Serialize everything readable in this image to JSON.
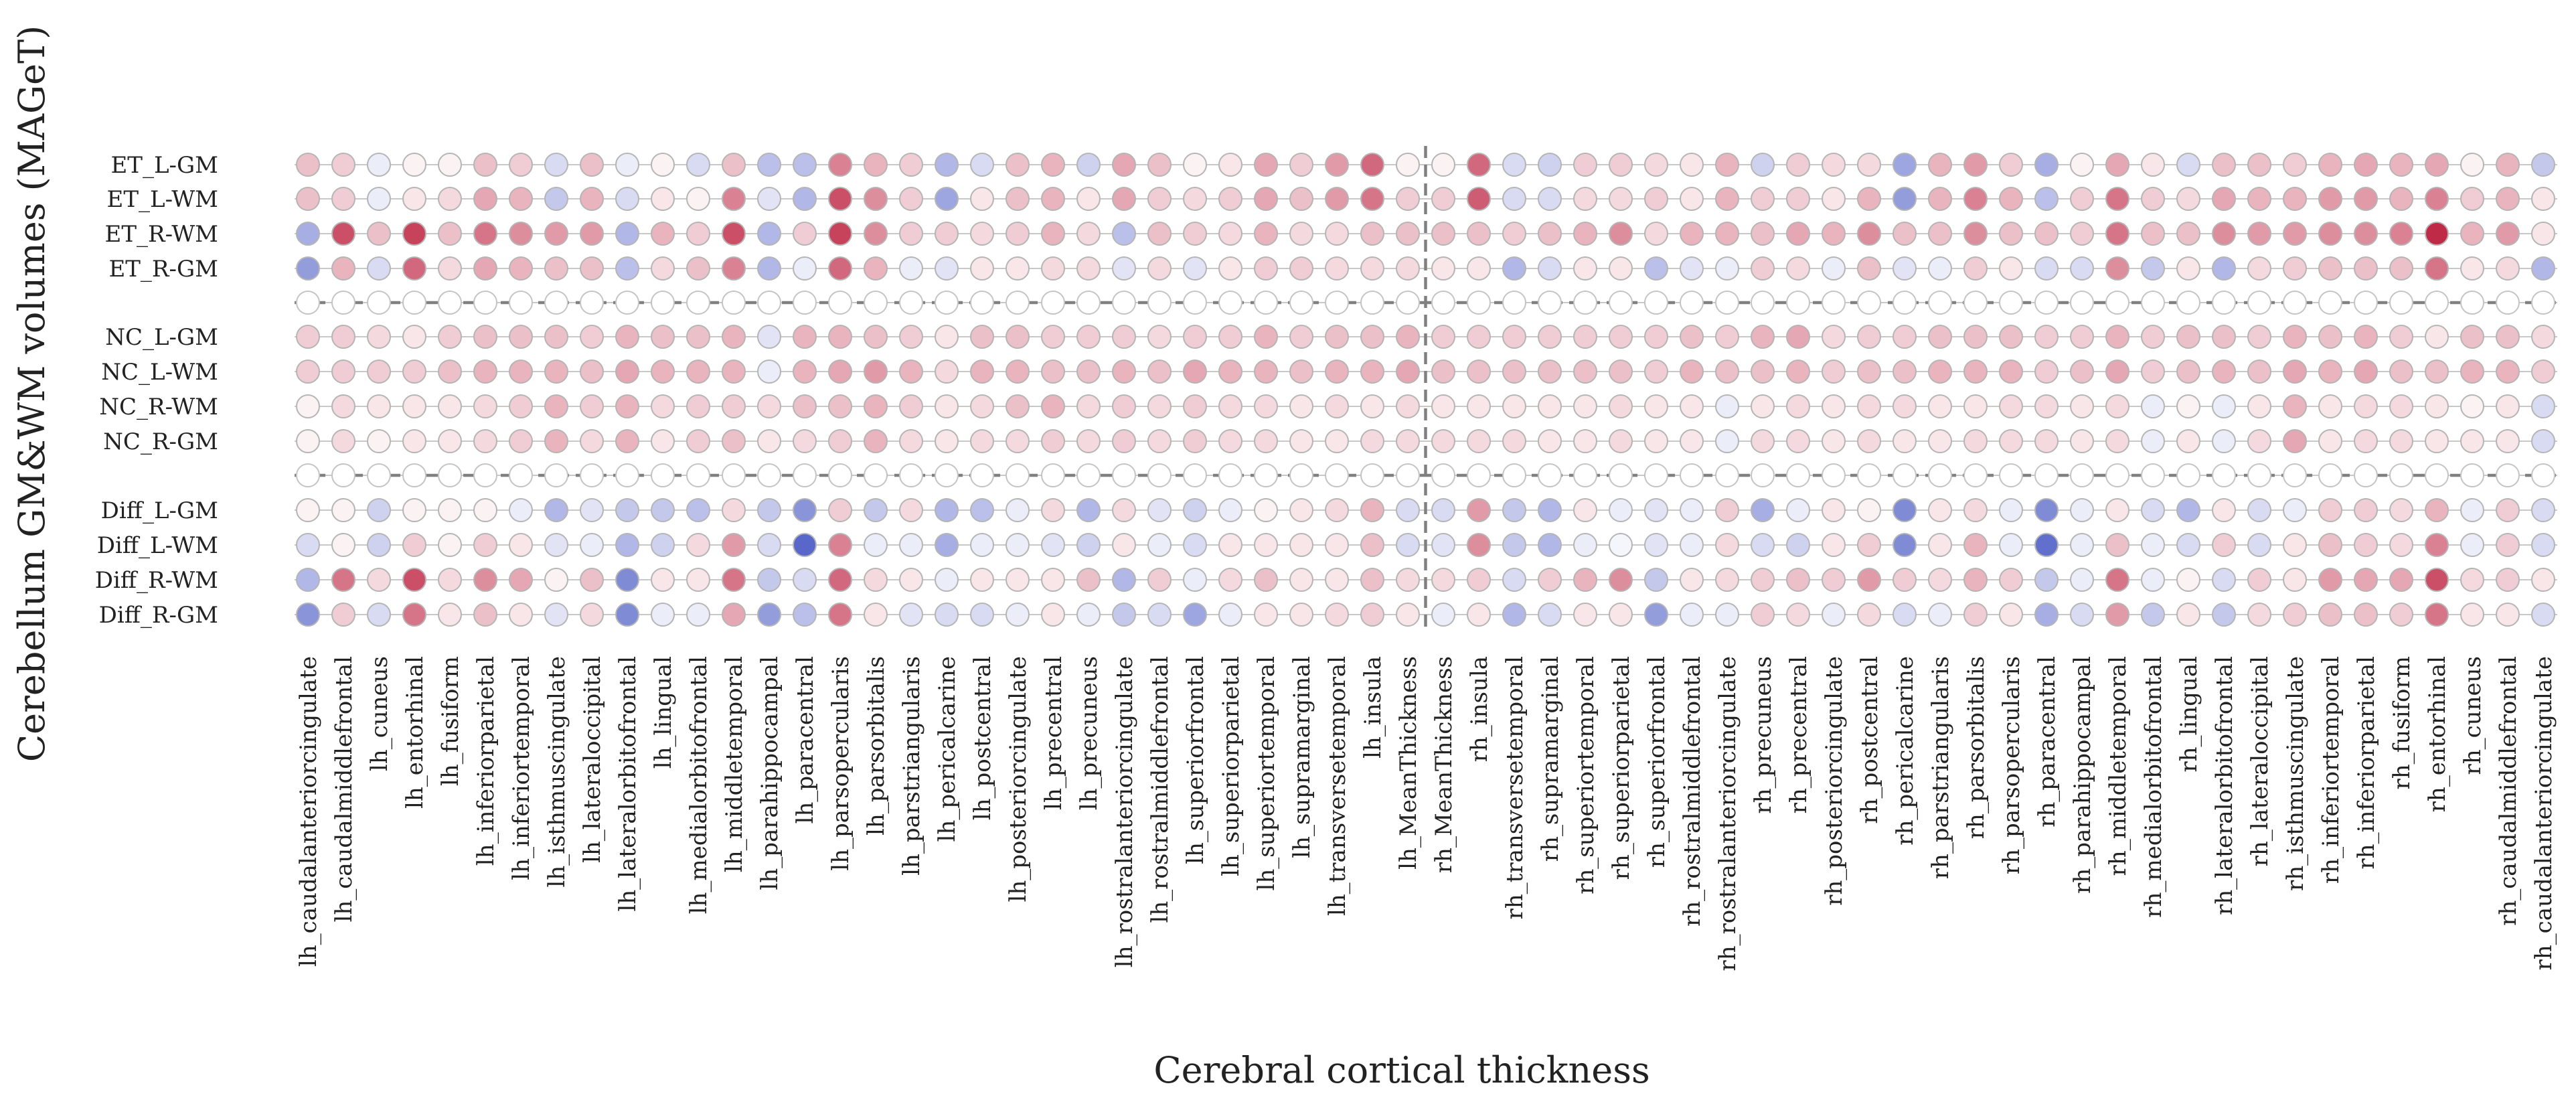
{
  "chart_data": {
    "type": "heatmap",
    "xlabel": "Cerebral cortical thickness",
    "ylabel": "Cerebellum GM&WM volumes (MAGeT)",
    "columns": [
      "lh_caudalanteriorcingulate",
      "lh_caudalmiddlefrontal",
      "lh_cuneus",
      "lh_entorhinal",
      "lh_fusiform",
      "lh_inferiorparietal",
      "lh_inferiortemporal",
      "lh_isthmuscingulate",
      "lh_lateraloccipital",
      "lh_lateralorbitofrontal",
      "lh_lingual",
      "lh_medialorbitofrontal",
      "lh_middletemporal",
      "lh_parahippocampal",
      "lh_paracentral",
      "lh_parsopercularis",
      "lh_parsorbitalis",
      "lh_parstriangularis",
      "lh_pericalcarine",
      "lh_postcentral",
      "lh_posteriorcingulate",
      "lh_precentral",
      "lh_precuneus",
      "lh_rostralanteriorcingulate",
      "lh_rostralmiddlefrontal",
      "lh_superiorfrontal",
      "lh_superiorparietal",
      "lh_superiortemporal",
      "lh_supramarginal",
      "lh_transversetemporal",
      "lh_insula",
      "lh_MeanThickness",
      "rh_MeanThickness",
      "rh_insula",
      "rh_transversetemporal",
      "rh_supramarginal",
      "rh_superiortemporal",
      "rh_superiorparietal",
      "rh_superiorfrontal",
      "rh_rostralmiddlefrontal",
      "rh_rostralanteriorcingulate",
      "rh_precuneus",
      "rh_precentral",
      "rh_posteriorcingulate",
      "rh_postcentral",
      "rh_pericalcarine",
      "rh_parstriangularis",
      "rh_parsorbitalis",
      "rh_parsopercularis",
      "rh_paracentral",
      "rh_parahippocampal",
      "rh_middletemporal",
      "rh_medialorbitofrontal",
      "rh_lingual",
      "rh_lateralorbitofrontal",
      "rh_lateraloccipital",
      "rh_isthmuscingulate",
      "rh_inferiortemporal",
      "rh_inferiorparietal",
      "rh_fusiform",
      "rh_entorhinal",
      "rh_cuneus",
      "rh_caudalmiddlefrontal",
      "rh_caudalanteriorcingulate"
    ],
    "row_groups": [
      {
        "rows": [
          "ET_L-GM",
          "ET_L-WM",
          "ET_R-WM",
          "ET_R-GM"
        ]
      },
      {
        "rows": [
          "NC_L-GM",
          "NC_L-WM",
          "NC_R-WM",
          "NC_R-GM"
        ]
      },
      {
        "rows": [
          "Diff_L-GM",
          "Diff_L-WM",
          "Diff_R-WM",
          "Diff_R-GM"
        ]
      }
    ],
    "value_range": [
      -1,
      1
    ],
    "colormap": {
      "negative": "#3b4cc0",
      "zero": "#ffffff",
      "positive": "#b40426"
    },
    "values": {
      "ET_L-GM": [
        0.25,
        0.2,
        -0.1,
        0.05,
        0.05,
        0.25,
        0.2,
        -0.2,
        0.25,
        -0.1,
        0.05,
        -0.2,
        0.25,
        -0.35,
        -0.35,
        0.5,
        0.3,
        0.2,
        -0.4,
        -0.2,
        0.25,
        0.3,
        -0.25,
        0.35,
        0.25,
        0.05,
        0.1,
        0.35,
        0.2,
        0.4,
        0.6,
        0.05,
        0.05,
        0.6,
        -0.2,
        -0.25,
        0.2,
        0.2,
        0.15,
        0.1,
        0.3,
        -0.25,
        0.2,
        0.15,
        0.15,
        -0.5,
        0.3,
        0.4,
        0.2,
        -0.45,
        0.05,
        0.35,
        0.1,
        -0.2,
        0.25,
        0.25,
        0.2,
        0.3,
        0.35,
        0.3,
        0.35,
        0.05,
        0.3,
        -0.3
      ],
      "ET_L-WM": [
        0.25,
        0.2,
        -0.1,
        0.1,
        0.15,
        0.35,
        0.3,
        -0.3,
        0.3,
        -0.2,
        0.1,
        0.05,
        0.5,
        -0.15,
        -0.4,
        0.7,
        0.45,
        0.2,
        -0.5,
        0.1,
        0.25,
        0.3,
        0.1,
        0.35,
        0.2,
        0.15,
        0.2,
        0.35,
        0.25,
        0.4,
        0.55,
        0.2,
        0.2,
        0.65,
        -0.2,
        -0.2,
        0.15,
        0.15,
        0.2,
        0.1,
        0.3,
        0.2,
        0.2,
        0.1,
        0.3,
        -0.55,
        0.3,
        0.5,
        0.3,
        -0.35,
        0.2,
        0.55,
        0.2,
        0.15,
        0.35,
        0.3,
        0.3,
        0.4,
        0.4,
        0.3,
        0.5,
        0.2,
        0.3,
        0.1
      ],
      "ET_R-WM": [
        -0.45,
        0.7,
        0.25,
        0.75,
        0.25,
        0.55,
        0.45,
        0.4,
        0.4,
        -0.4,
        0.3,
        0.2,
        0.7,
        -0.4,
        0.2,
        0.75,
        0.45,
        0.2,
        0.2,
        0.15,
        0.2,
        0.3,
        0.15,
        -0.35,
        0.25,
        0.2,
        0.15,
        0.3,
        0.15,
        0.15,
        0.25,
        0.25,
        0.25,
        0.25,
        0.2,
        0.25,
        0.3,
        0.45,
        0.15,
        0.3,
        0.3,
        0.25,
        0.35,
        0.3,
        0.45,
        0.25,
        0.25,
        0.45,
        0.25,
        0.25,
        0.2,
        0.55,
        0.25,
        0.25,
        0.45,
        0.4,
        0.4,
        0.45,
        0.45,
        0.5,
        0.85,
        0.3,
        0.4,
        0.1
      ],
      "ET_R-GM": [
        -0.55,
        0.3,
        -0.2,
        0.6,
        0.15,
        0.35,
        0.3,
        0.25,
        0.25,
        -0.35,
        0.15,
        0.25,
        0.5,
        -0.4,
        -0.1,
        0.6,
        0.3,
        -0.1,
        -0.15,
        0.1,
        0.1,
        0.15,
        0.15,
        -0.15,
        0.15,
        -0.15,
        0.1,
        0.2,
        0.2,
        0.15,
        0.15,
        0.15,
        0.1,
        0.1,
        -0.4,
        -0.2,
        0.1,
        0.1,
        -0.35,
        -0.15,
        -0.1,
        0.2,
        0.15,
        -0.1,
        0.25,
        -0.15,
        -0.1,
        0.2,
        0.1,
        -0.2,
        -0.2,
        0.45,
        -0.3,
        0.1,
        -0.4,
        0.15,
        0.2,
        0.25,
        0.25,
        0.25,
        0.55,
        0.1,
        0.15,
        -0.4
      ],
      "NC_L-GM": [
        0.2,
        0.2,
        0.15,
        0.1,
        0.2,
        0.25,
        0.25,
        0.25,
        0.2,
        0.3,
        0.25,
        0.25,
        0.3,
        -0.15,
        0.3,
        0.3,
        0.25,
        0.2,
        0.1,
        0.25,
        0.25,
        0.2,
        0.2,
        0.2,
        0.15,
        0.2,
        0.2,
        0.3,
        0.2,
        0.25,
        0.25,
        0.3,
        0.2,
        0.2,
        0.2,
        0.2,
        0.2,
        0.2,
        0.2,
        0.25,
        0.2,
        0.3,
        0.35,
        0.15,
        0.2,
        0.2,
        0.25,
        0.25,
        0.25,
        0.2,
        0.2,
        0.3,
        0.2,
        0.25,
        0.25,
        0.2,
        0.3,
        0.25,
        0.3,
        0.2,
        0.1,
        0.25,
        0.25,
        0.15
      ],
      "NC_L-WM": [
        0.2,
        0.2,
        0.2,
        0.2,
        0.25,
        0.3,
        0.3,
        0.3,
        0.25,
        0.35,
        0.3,
        0.3,
        0.3,
        -0.1,
        0.3,
        0.35,
        0.4,
        0.3,
        0.15,
        0.3,
        0.3,
        0.25,
        0.25,
        0.3,
        0.25,
        0.35,
        0.3,
        0.3,
        0.25,
        0.3,
        0.3,
        0.35,
        0.25,
        0.25,
        0.25,
        0.25,
        0.25,
        0.25,
        0.2,
        0.3,
        0.25,
        0.25,
        0.3,
        0.2,
        0.25,
        0.25,
        0.3,
        0.3,
        0.3,
        0.2,
        0.25,
        0.35,
        0.2,
        0.25,
        0.3,
        0.25,
        0.35,
        0.3,
        0.35,
        0.25,
        0.25,
        0.3,
        0.3,
        0.2
      ],
      "NC_R-WM": [
        0.05,
        0.15,
        0.1,
        0.1,
        0.1,
        0.15,
        0.2,
        0.3,
        0.2,
        0.3,
        0.15,
        0.2,
        0.2,
        0.15,
        0.25,
        0.25,
        0.3,
        0.2,
        0.1,
        0.15,
        0.25,
        0.3,
        0.15,
        0.2,
        0.15,
        0.2,
        0.15,
        0.15,
        0.1,
        0.15,
        0.1,
        0.15,
        0.1,
        0.1,
        0.1,
        0.1,
        0.1,
        0.15,
        0.1,
        0.1,
        -0.1,
        0.1,
        0.15,
        0.1,
        0.15,
        0.15,
        0.1,
        0.1,
        0.15,
        0.15,
        0.1,
        0.15,
        -0.1,
        0.05,
        -0.1,
        0.1,
        0.3,
        0.1,
        0.15,
        0.15,
        0.1,
        0.05,
        0.1,
        -0.2
      ],
      "NC_R-GM": [
        0.05,
        0.15,
        0.05,
        0.1,
        0.1,
        0.15,
        0.2,
        0.3,
        0.15,
        0.3,
        0.1,
        0.2,
        0.25,
        0.1,
        0.15,
        0.2,
        0.3,
        0.15,
        0.1,
        0.15,
        0.15,
        0.2,
        0.15,
        0.2,
        0.15,
        0.2,
        0.15,
        0.15,
        0.1,
        0.1,
        0.15,
        0.15,
        0.15,
        0.15,
        0.15,
        0.1,
        0.1,
        0.15,
        0.1,
        0.1,
        -0.1,
        0.15,
        0.15,
        0.1,
        0.15,
        0.1,
        0.1,
        0.15,
        0.15,
        0.15,
        0.1,
        0.15,
        -0.1,
        0.1,
        -0.1,
        0.15,
        0.35,
        0.1,
        0.15,
        0.15,
        0.1,
        0.1,
        0.1,
        -0.2
      ],
      "Diff_L-GM": [
        0.05,
        0.05,
        -0.25,
        0.05,
        0.05,
        0.05,
        -0.1,
        -0.4,
        -0.15,
        -0.3,
        -0.3,
        -0.35,
        0.15,
        -0.3,
        -0.6,
        0.2,
        -0.3,
        0.15,
        -0.4,
        -0.35,
        -0.1,
        0.15,
        -0.4,
        0.15,
        -0.15,
        -0.25,
        -0.1,
        0.05,
        0.1,
        0.15,
        0.3,
        -0.2,
        -0.2,
        0.4,
        -0.3,
        -0.4,
        0.1,
        -0.1,
        -0.15,
        -0.1,
        0.2,
        -0.45,
        -0.1,
        0.1,
        0.05,
        -0.65,
        0.1,
        0.15,
        -0.1,
        -0.65,
        -0.1,
        0.1,
        -0.2,
        -0.4,
        0.1,
        -0.2,
        -0.1,
        0.2,
        0.2,
        0.15,
        0.3,
        -0.1,
        0.2,
        -0.2
      ],
      "Diff_L-WM": [
        -0.2,
        0.05,
        -0.25,
        0.2,
        0.05,
        0.2,
        0.1,
        -0.15,
        -0.1,
        -0.4,
        -0.25,
        0.15,
        0.4,
        -0.2,
        -0.85,
        0.5,
        -0.1,
        -0.1,
        -0.45,
        -0.1,
        -0.1,
        -0.15,
        -0.25,
        0.1,
        -0.1,
        -0.2,
        0.1,
        0.1,
        0.1,
        0.1,
        0.25,
        -0.2,
        -0.15,
        0.45,
        -0.3,
        -0.4,
        -0.1,
        -0.05,
        -0.15,
        -0.1,
        0.15,
        -0.2,
        -0.25,
        0.1,
        0.2,
        -0.65,
        0.1,
        0.3,
        -0.1,
        -0.8,
        -0.1,
        0.25,
        -0.1,
        -0.2,
        0.2,
        -0.2,
        0.1,
        0.25,
        0.2,
        0.15,
        0.5,
        -0.1,
        0.2,
        -0.2
      ],
      "Diff_R-WM": [
        -0.4,
        0.55,
        0.15,
        0.7,
        0.15,
        0.45,
        0.35,
        0.05,
        0.25,
        -0.65,
        0.1,
        0.1,
        0.55,
        -0.3,
        -0.2,
        0.6,
        0.15,
        0.1,
        -0.1,
        0.1,
        0.1,
        0.1,
        0.25,
        -0.4,
        0.2,
        -0.1,
        0.15,
        0.25,
        0.1,
        0.1,
        0.25,
        0.15,
        0.15,
        0.2,
        -0.2,
        0.2,
        0.3,
        0.45,
        -0.3,
        0.1,
        0.15,
        0.2,
        0.25,
        0.2,
        0.4,
        0.2,
        0.15,
        0.3,
        0.2,
        -0.3,
        -0.1,
        0.55,
        -0.1,
        0.05,
        -0.2,
        0.2,
        0.1,
        0.4,
        0.35,
        0.35,
        0.7,
        0.15,
        0.2,
        0.1
      ],
      "Diff_R-GM": [
        -0.6,
        0.2,
        -0.2,
        0.55,
        0.1,
        0.25,
        0.1,
        -0.15,
        0.15,
        -0.65,
        -0.1,
        -0.1,
        0.35,
        -0.55,
        -0.35,
        0.55,
        0.1,
        -0.15,
        -0.2,
        -0.2,
        -0.1,
        0.1,
        -0.1,
        -0.3,
        -0.2,
        -0.5,
        -0.1,
        0.1,
        0.1,
        0.15,
        0.2,
        0.1,
        -0.1,
        0.1,
        -0.4,
        -0.2,
        0.1,
        0.1,
        -0.55,
        -0.1,
        -0.1,
        0.2,
        0.15,
        -0.1,
        0.15,
        -0.2,
        -0.1,
        0.2,
        0.1,
        -0.45,
        -0.2,
        0.4,
        -0.3,
        0.1,
        -0.3,
        0.15,
        0.2,
        0.25,
        0.25,
        0.2,
        0.55,
        0.1,
        0.1,
        -0.2
      ]
    }
  }
}
